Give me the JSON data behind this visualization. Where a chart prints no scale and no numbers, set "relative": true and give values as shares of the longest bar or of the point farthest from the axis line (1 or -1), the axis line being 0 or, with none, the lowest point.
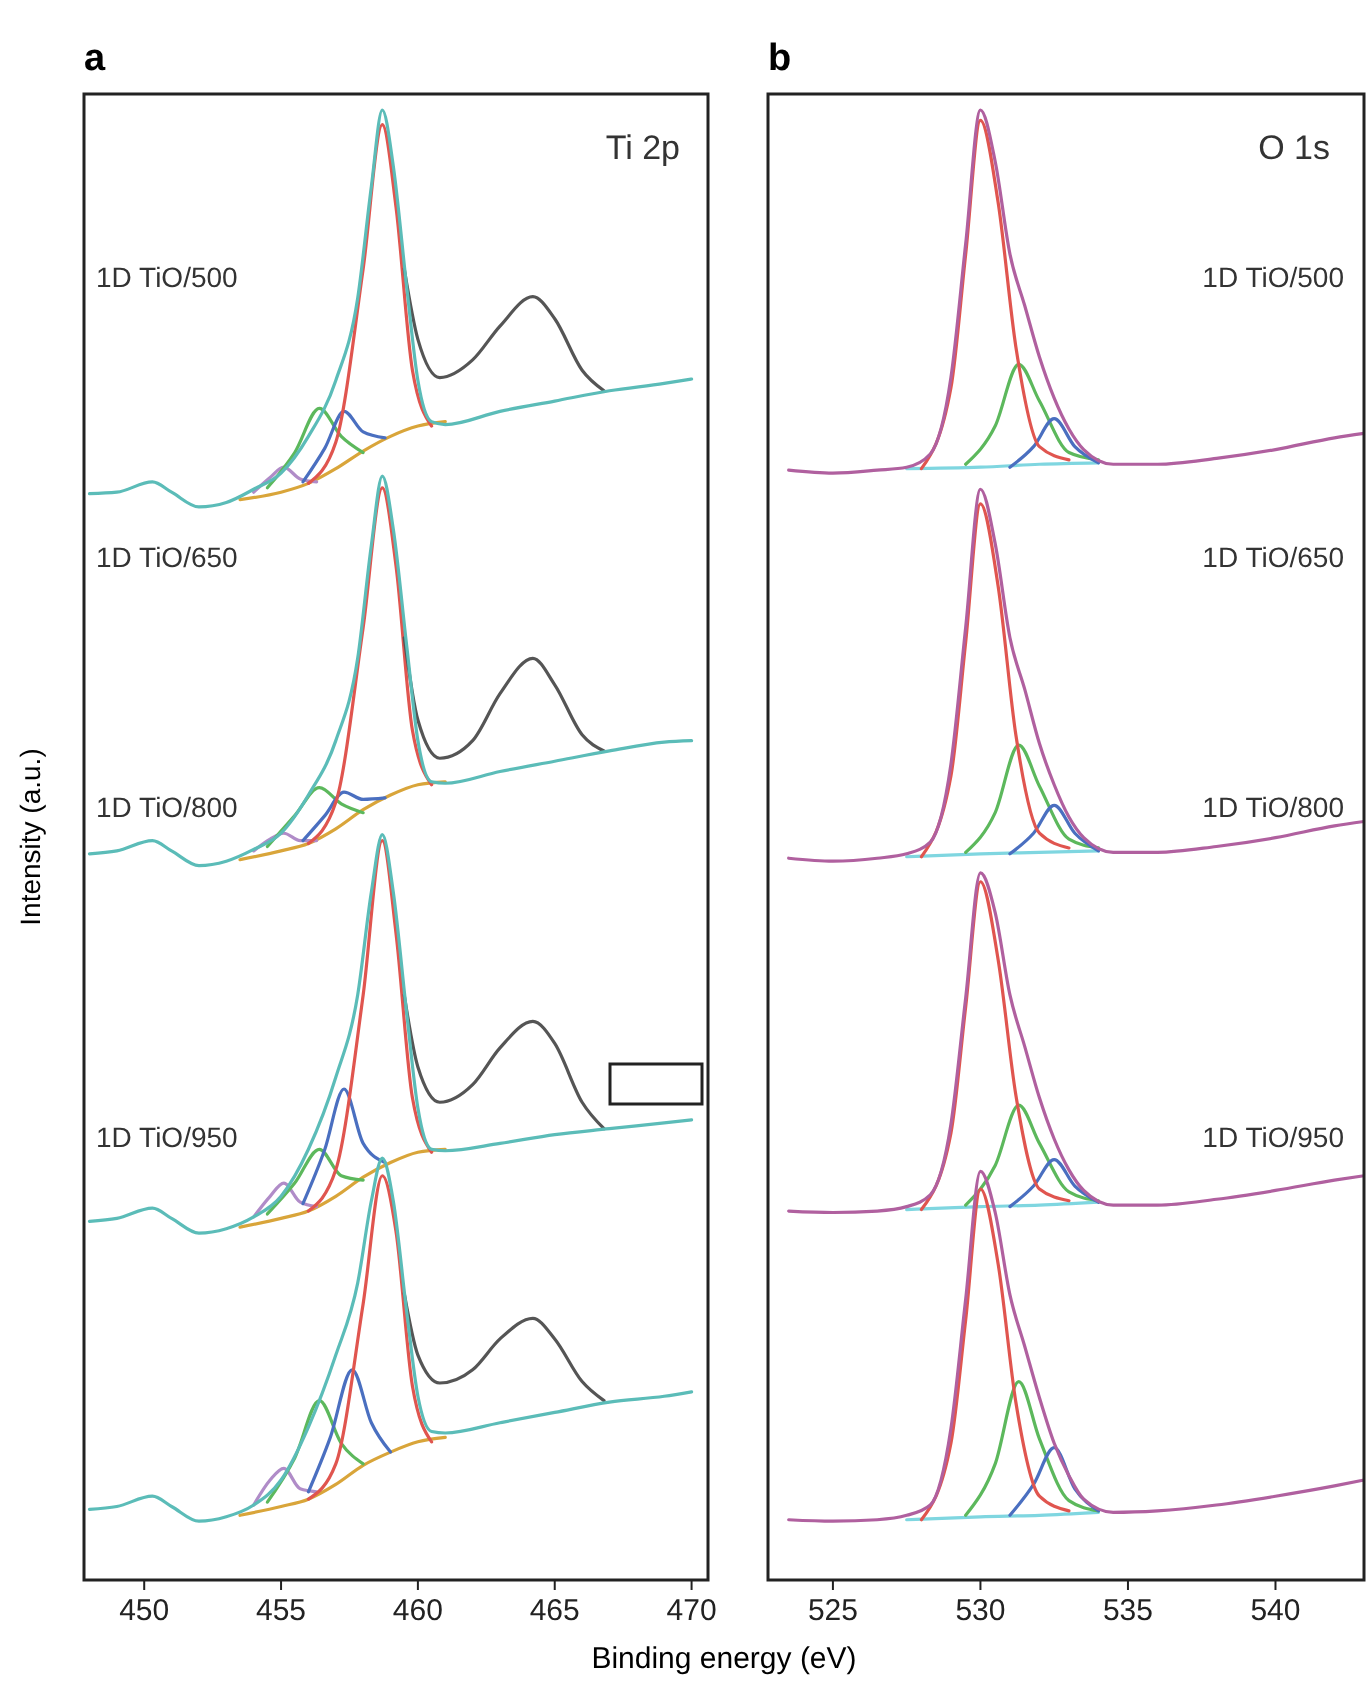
{
  "chart_data": [
    {
      "type": "line",
      "title": "a",
      "ylabel": "Intensity (a.u.)",
      "xlabel": "Binding energy (eV)",
      "relative": true,
      "xlim": [
        447.8,
        470.6
      ],
      "xticks": [
        450,
        455,
        460,
        465,
        470
      ],
      "annotations": [
        "Ti 2p",
        "1D TiO/500",
        "1D TiO/650",
        "1D TiO/800",
        "1D TiO/950"
      ],
      "series": [
        {
          "color": "#d9a53a",
          "x": [
            453.5,
            455,
            456,
            457,
            458,
            459,
            460,
            461
          ],
          "values": [
            0.735,
            0.74,
            0.746,
            0.756,
            0.768,
            0.778,
            0.785,
            0.788
          ]
        },
        {
          "color": "#b08cc8",
          "x": [
            454,
            454.6,
            455.1,
            455.7,
            456.3
          ],
          "values": [
            0.74,
            0.75,
            0.757,
            0.749,
            0.747
          ]
        },
        {
          "color": "#5cb85c",
          "x": [
            454.5,
            455.5,
            456.4,
            457.2,
            458
          ],
          "values": [
            0.743,
            0.767,
            0.797,
            0.778,
            0.767
          ]
        },
        {
          "color": "#4a6fc0",
          "x": [
            455.8,
            456.6,
            457.3,
            458,
            458.8
          ],
          "values": [
            0.747,
            0.77,
            0.795,
            0.781,
            0.777
          ]
        },
        {
          "color": "#e0554f",
          "x": [
            456,
            457,
            458,
            458.7,
            459.2,
            459.8,
            460.5
          ],
          "values": [
            0.746,
            0.774,
            0.892,
            0.99,
            0.934,
            0.823,
            0.785
          ]
        },
        {
          "color": "#555555",
          "x": [
            459.5,
            460,
            460.8,
            462,
            463,
            464.2,
            465,
            466,
            466.8
          ],
          "values": [
            0.892,
            0.844,
            0.818,
            0.83,
            0.853,
            0.873,
            0.858,
            0.823,
            0.809
          ]
        },
        {
          "color": "#5bbcb8",
          "x": [
            448,
            449,
            450.3,
            451,
            452,
            453,
            454,
            455,
            456,
            457,
            457.8,
            458.3,
            458.7,
            459.1,
            459.6,
            460,
            460.5,
            461,
            463,
            465,
            467,
            469,
            470
          ],
          "values": [
            0.739,
            0.74,
            0.747,
            0.74,
            0.73,
            0.733,
            0.742,
            0.753,
            0.778,
            0.816,
            0.872,
            0.948,
            1,
            0.962,
            0.878,
            0.816,
            0.788,
            0.786,
            0.795,
            0.802,
            0.809,
            0.814,
            0.817
          ]
        },
        {
          "color": "#d9a53a",
          "x": [
            453.5,
            455,
            456,
            457,
            458,
            459,
            460,
            461
          ],
          "values": [
            0.49,
            0.496,
            0.501,
            0.511,
            0.524,
            0.534,
            0.541,
            0.543
          ]
        },
        {
          "color": "#b08cc8",
          "x": [
            454,
            454.6,
            455.1,
            455.7,
            456.3
          ],
          "values": [
            0.496,
            0.504,
            0.508,
            0.503,
            0.503
          ]
        },
        {
          "color": "#5cb85c",
          "x": [
            454.5,
            455.5,
            456.4,
            457.2,
            458
          ],
          "values": [
            0.499,
            0.52,
            0.539,
            0.528,
            0.522
          ]
        },
        {
          "color": "#4a6fc0",
          "x": [
            455.8,
            456.6,
            457.3,
            458,
            458.8
          ],
          "values": [
            0.503,
            0.52,
            0.536,
            0.531,
            0.532
          ]
        },
        {
          "color": "#e0554f",
          "x": [
            456,
            457,
            458,
            458.7,
            459.2,
            459.8,
            460.5
          ],
          "values": [
            0.501,
            0.529,
            0.648,
            0.743,
            0.69,
            0.578,
            0.541
          ]
        },
        {
          "color": "#555555",
          "x": [
            459.5,
            460,
            460.8,
            462,
            463,
            464.2,
            465,
            466,
            466.8
          ],
          "values": [
            0.641,
            0.585,
            0.559,
            0.571,
            0.603,
            0.627,
            0.609,
            0.575,
            0.564
          ]
        },
        {
          "color": "#5bbcb8",
          "x": [
            448,
            449,
            450.3,
            451,
            452,
            453,
            454,
            455,
            456,
            457,
            457.8,
            458.3,
            458.7,
            459.1,
            459.6,
            460,
            460.5,
            461,
            463,
            465,
            467,
            469,
            470
          ],
          "values": [
            0.494,
            0.496,
            0.503,
            0.496,
            0.486,
            0.489,
            0.497,
            0.508,
            0.534,
            0.571,
            0.627,
            0.704,
            0.751,
            0.715,
            0.634,
            0.571,
            0.543,
            0.542,
            0.55,
            0.557,
            0.564,
            0.57,
            0.571
          ]
        },
        {
          "color": "#d9a53a",
          "x": [
            453.5,
            455,
            456,
            457,
            458,
            459,
            460,
            461
          ],
          "values": [
            0.24,
            0.246,
            0.251,
            0.261,
            0.274,
            0.284,
            0.291,
            0.293
          ]
        },
        {
          "color": "#b08cc8",
          "x": [
            454,
            454.6,
            455.1,
            455.7,
            456.3
          ],
          "values": [
            0.247,
            0.261,
            0.27,
            0.257,
            0.254
          ]
        },
        {
          "color": "#5cb85c",
          "x": [
            454.5,
            455.5,
            456.4,
            457.2,
            458
          ],
          "values": [
            0.249,
            0.27,
            0.293,
            0.275,
            0.272
          ]
        },
        {
          "color": "#4a6fc0",
          "x": [
            455.8,
            456.6,
            457.3,
            458,
            458.8
          ],
          "values": [
            0.256,
            0.293,
            0.334,
            0.297,
            0.284
          ]
        },
        {
          "color": "#e0554f",
          "x": [
            456,
            457,
            458,
            458.7,
            459.2,
            459.8,
            460.5
          ],
          "values": [
            0.251,
            0.279,
            0.398,
            0.503,
            0.44,
            0.328,
            0.291
          ]
        },
        {
          "color": "#555555",
          "x": [
            459.5,
            460,
            460.8,
            462,
            463,
            464.2,
            465,
            466,
            466.8
          ],
          "values": [
            0.398,
            0.349,
            0.325,
            0.337,
            0.362,
            0.38,
            0.365,
            0.325,
            0.307
          ]
        },
        {
          "color": "#5bbcb8",
          "x": [
            448,
            449,
            450.3,
            451,
            452,
            453,
            454,
            455,
            456,
            457,
            457.8,
            458.3,
            458.7,
            459.1,
            459.6,
            460,
            460.5,
            461,
            463,
            465,
            467,
            469,
            470
          ],
          "values": [
            0.244,
            0.246,
            0.253,
            0.246,
            0.236,
            0.239,
            0.247,
            0.261,
            0.293,
            0.342,
            0.398,
            0.468,
            0.507,
            0.468,
            0.384,
            0.321,
            0.293,
            0.292,
            0.297,
            0.303,
            0.307,
            0.311,
            0.313
          ]
        },
        {
          "color": "#d9a53a",
          "x": [
            453.5,
            455,
            456,
            457,
            458,
            459,
            460,
            461
          ],
          "values": [
            0.044,
            0.05,
            0.055,
            0.065,
            0.078,
            0.087,
            0.094,
            0.097
          ]
        },
        {
          "color": "#b08cc8",
          "x": [
            454,
            454.6,
            455.1,
            455.7,
            456.3
          ],
          "values": [
            0.051,
            0.068,
            0.076,
            0.062,
            0.06
          ]
        },
        {
          "color": "#5cb85c",
          "x": [
            454.5,
            455.5,
            456.4,
            457.2,
            458
          ],
          "values": [
            0.053,
            0.083,
            0.122,
            0.093,
            0.079
          ]
        },
        {
          "color": "#4a6fc0",
          "x": [
            456,
            456.8,
            457.6,
            458.3,
            459
          ],
          "values": [
            0.06,
            0.097,
            0.143,
            0.107,
            0.087
          ]
        },
        {
          "color": "#e0554f",
          "x": [
            456,
            457,
            458,
            458.7,
            459.2,
            459.8,
            460.5
          ],
          "values": [
            0.055,
            0.079,
            0.188,
            0.275,
            0.237,
            0.132,
            0.094
          ]
        },
        {
          "color": "#555555",
          "x": [
            459.5,
            460,
            460.8,
            462,
            463,
            464.2,
            465,
            466,
            466.8
          ],
          "values": [
            0.195,
            0.153,
            0.134,
            0.143,
            0.164,
            0.178,
            0.164,
            0.135,
            0.122
          ]
        },
        {
          "color": "#5bbcb8",
          "x": [
            448,
            449,
            450.3,
            451,
            452,
            453,
            454,
            455,
            456,
            457,
            457.8,
            458.3,
            458.7,
            459.1,
            459.6,
            460,
            460.5,
            461,
            463,
            465,
            467,
            469,
            470
          ],
          "values": [
            0.048,
            0.05,
            0.057,
            0.05,
            0.04,
            0.043,
            0.051,
            0.068,
            0.104,
            0.153,
            0.202,
            0.258,
            0.287,
            0.258,
            0.181,
            0.125,
            0.101,
            0.1,
            0.107,
            0.114,
            0.121,
            0.125,
            0.128
          ]
        }
      ]
    },
    {
      "type": "line",
      "title": "b",
      "relative": true,
      "xlim": [
        522.8,
        543
      ],
      "xticks": [
        525,
        530,
        535,
        540
      ],
      "annotations": [
        "O 1s",
        "1D TiO/500",
        "1D TiO/650",
        "1D TiO/800",
        "1D TiO/950"
      ],
      "series": [
        {
          "color": "#7fd6e0",
          "x": [
            527.5,
            530,
            532,
            534
          ],
          "values": [
            0.756,
            0.757,
            0.759,
            0.76
          ]
        },
        {
          "color": "#5cb85c",
          "x": [
            529.5,
            530.5,
            531.3,
            532,
            533,
            534
          ],
          "values": [
            0.759,
            0.785,
            0.827,
            0.802,
            0.767,
            0.762
          ]
        },
        {
          "color": "#4a6fc0",
          "x": [
            531,
            531.8,
            532.5,
            533.2,
            534
          ],
          "values": [
            0.757,
            0.771,
            0.79,
            0.771,
            0.76
          ]
        },
        {
          "color": "#e0554f",
          "x": [
            528,
            529,
            529.5,
            530,
            530.6,
            531.2,
            532,
            533
          ],
          "values": [
            0.756,
            0.811,
            0.902,
            0.993,
            0.937,
            0.839,
            0.771,
            0.762
          ]
        },
        {
          "color": "#b0609f",
          "x": [
            523.5,
            525,
            526.5,
            527.5,
            528.3,
            529,
            529.5,
            530,
            530.5,
            531,
            531.5,
            532,
            532.5,
            533,
            533.5,
            534.5,
            536,
            538,
            540,
            542,
            543
          ],
          "values": [
            0.755,
            0.753,
            0.755,
            0.757,
            0.766,
            0.818,
            0.909,
            1,
            0.965,
            0.902,
            0.867,
            0.832,
            0.804,
            0.783,
            0.769,
            0.759,
            0.759,
            0.763,
            0.769,
            0.777,
            0.78
          ]
        },
        {
          "color": "#7fd6e0",
          "x": [
            527.5,
            530,
            532,
            534
          ],
          "values": [
            0.492,
            0.494,
            0.495,
            0.496
          ]
        },
        {
          "color": "#5cb85c",
          "x": [
            529.5,
            530.5,
            531.3,
            532,
            533,
            534
          ],
          "values": [
            0.495,
            0.522,
            0.568,
            0.54,
            0.504,
            0.498
          ]
        },
        {
          "color": "#4a6fc0",
          "x": [
            531,
            531.8,
            532.5,
            533.2,
            534
          ],
          "values": [
            0.494,
            0.508,
            0.527,
            0.508,
            0.496
          ]
        },
        {
          "color": "#e0554f",
          "x": [
            528,
            529,
            529.5,
            530,
            530.6,
            531.2,
            532,
            533
          ],
          "values": [
            0.492,
            0.547,
            0.638,
            0.732,
            0.676,
            0.575,
            0.508,
            0.498
          ]
        },
        {
          "color": "#b0609f",
          "x": [
            523.5,
            525,
            526.5,
            527.5,
            528.3,
            529,
            529.5,
            530,
            530.5,
            531,
            531.5,
            532,
            532.5,
            533,
            533.5,
            534.5,
            536,
            538,
            540,
            542,
            543
          ],
          "values": [
            0.491,
            0.489,
            0.491,
            0.494,
            0.502,
            0.555,
            0.648,
            0.742,
            0.705,
            0.641,
            0.606,
            0.569,
            0.541,
            0.519,
            0.505,
            0.495,
            0.495,
            0.499,
            0.505,
            0.513,
            0.516
          ]
        },
        {
          "color": "#7fd6e0",
          "x": [
            527.5,
            530,
            532,
            534
          ],
          "values": [
            0.252,
            0.254,
            0.255,
            0.257
          ]
        },
        {
          "color": "#5cb85c",
          "x": [
            529.5,
            530.5,
            531.3,
            532,
            533,
            534
          ],
          "values": [
            0.255,
            0.282,
            0.323,
            0.297,
            0.264,
            0.258
          ]
        },
        {
          "color": "#4a6fc0",
          "x": [
            531,
            531.8,
            532.5,
            533.2,
            534
          ],
          "values": [
            0.254,
            0.268,
            0.286,
            0.268,
            0.257
          ]
        },
        {
          "color": "#e0554f",
          "x": [
            528,
            529,
            529.5,
            530,
            530.6,
            531.2,
            532,
            533
          ],
          "values": [
            0.252,
            0.304,
            0.39,
            0.475,
            0.422,
            0.33,
            0.266,
            0.258
          ]
        },
        {
          "color": "#b0609f",
          "x": [
            523.5,
            525,
            526.5,
            527.5,
            528.3,
            529,
            529.5,
            530,
            530.5,
            531,
            531.5,
            532,
            532.5,
            533,
            533.5,
            534.5,
            536,
            538,
            540,
            542,
            543
          ],
          "values": [
            0.251,
            0.25,
            0.251,
            0.254,
            0.262,
            0.31,
            0.396,
            0.481,
            0.454,
            0.398,
            0.363,
            0.328,
            0.3,
            0.279,
            0.265,
            0.255,
            0.255,
            0.259,
            0.265,
            0.272,
            0.275
          ]
        },
        {
          "color": "#7fd6e0",
          "x": [
            527.5,
            530,
            532,
            534
          ],
          "values": [
            0.041,
            0.043,
            0.044,
            0.046
          ]
        },
        {
          "color": "#5cb85c",
          "x": [
            529.5,
            530.5,
            531.3,
            532,
            533,
            534
          ],
          "values": [
            0.044,
            0.079,
            0.135,
            0.096,
            0.054,
            0.047
          ]
        },
        {
          "color": "#4a6fc0",
          "x": [
            531,
            531.8,
            532.5,
            533.2,
            534
          ],
          "values": [
            0.044,
            0.065,
            0.09,
            0.062,
            0.047
          ]
        },
        {
          "color": "#e0554f",
          "x": [
            528,
            529,
            529.5,
            530,
            530.6,
            531.2,
            532,
            533
          ],
          "values": [
            0.041,
            0.093,
            0.177,
            0.266,
            0.215,
            0.121,
            0.057,
            0.047
          ]
        },
        {
          "color": "#b0609f",
          "x": [
            523.5,
            525,
            526.5,
            527.5,
            528.3,
            529,
            529.5,
            530,
            530.5,
            531,
            531.5,
            532,
            532.5,
            533,
            533.5,
            534.5,
            536,
            538,
            540,
            542,
            543
          ],
          "values": [
            0.041,
            0.04,
            0.041,
            0.044,
            0.051,
            0.103,
            0.191,
            0.278,
            0.25,
            0.194,
            0.159,
            0.124,
            0.093,
            0.071,
            0.055,
            0.046,
            0.047,
            0.051,
            0.057,
            0.064,
            0.068
          ]
        }
      ]
    }
  ]
}
